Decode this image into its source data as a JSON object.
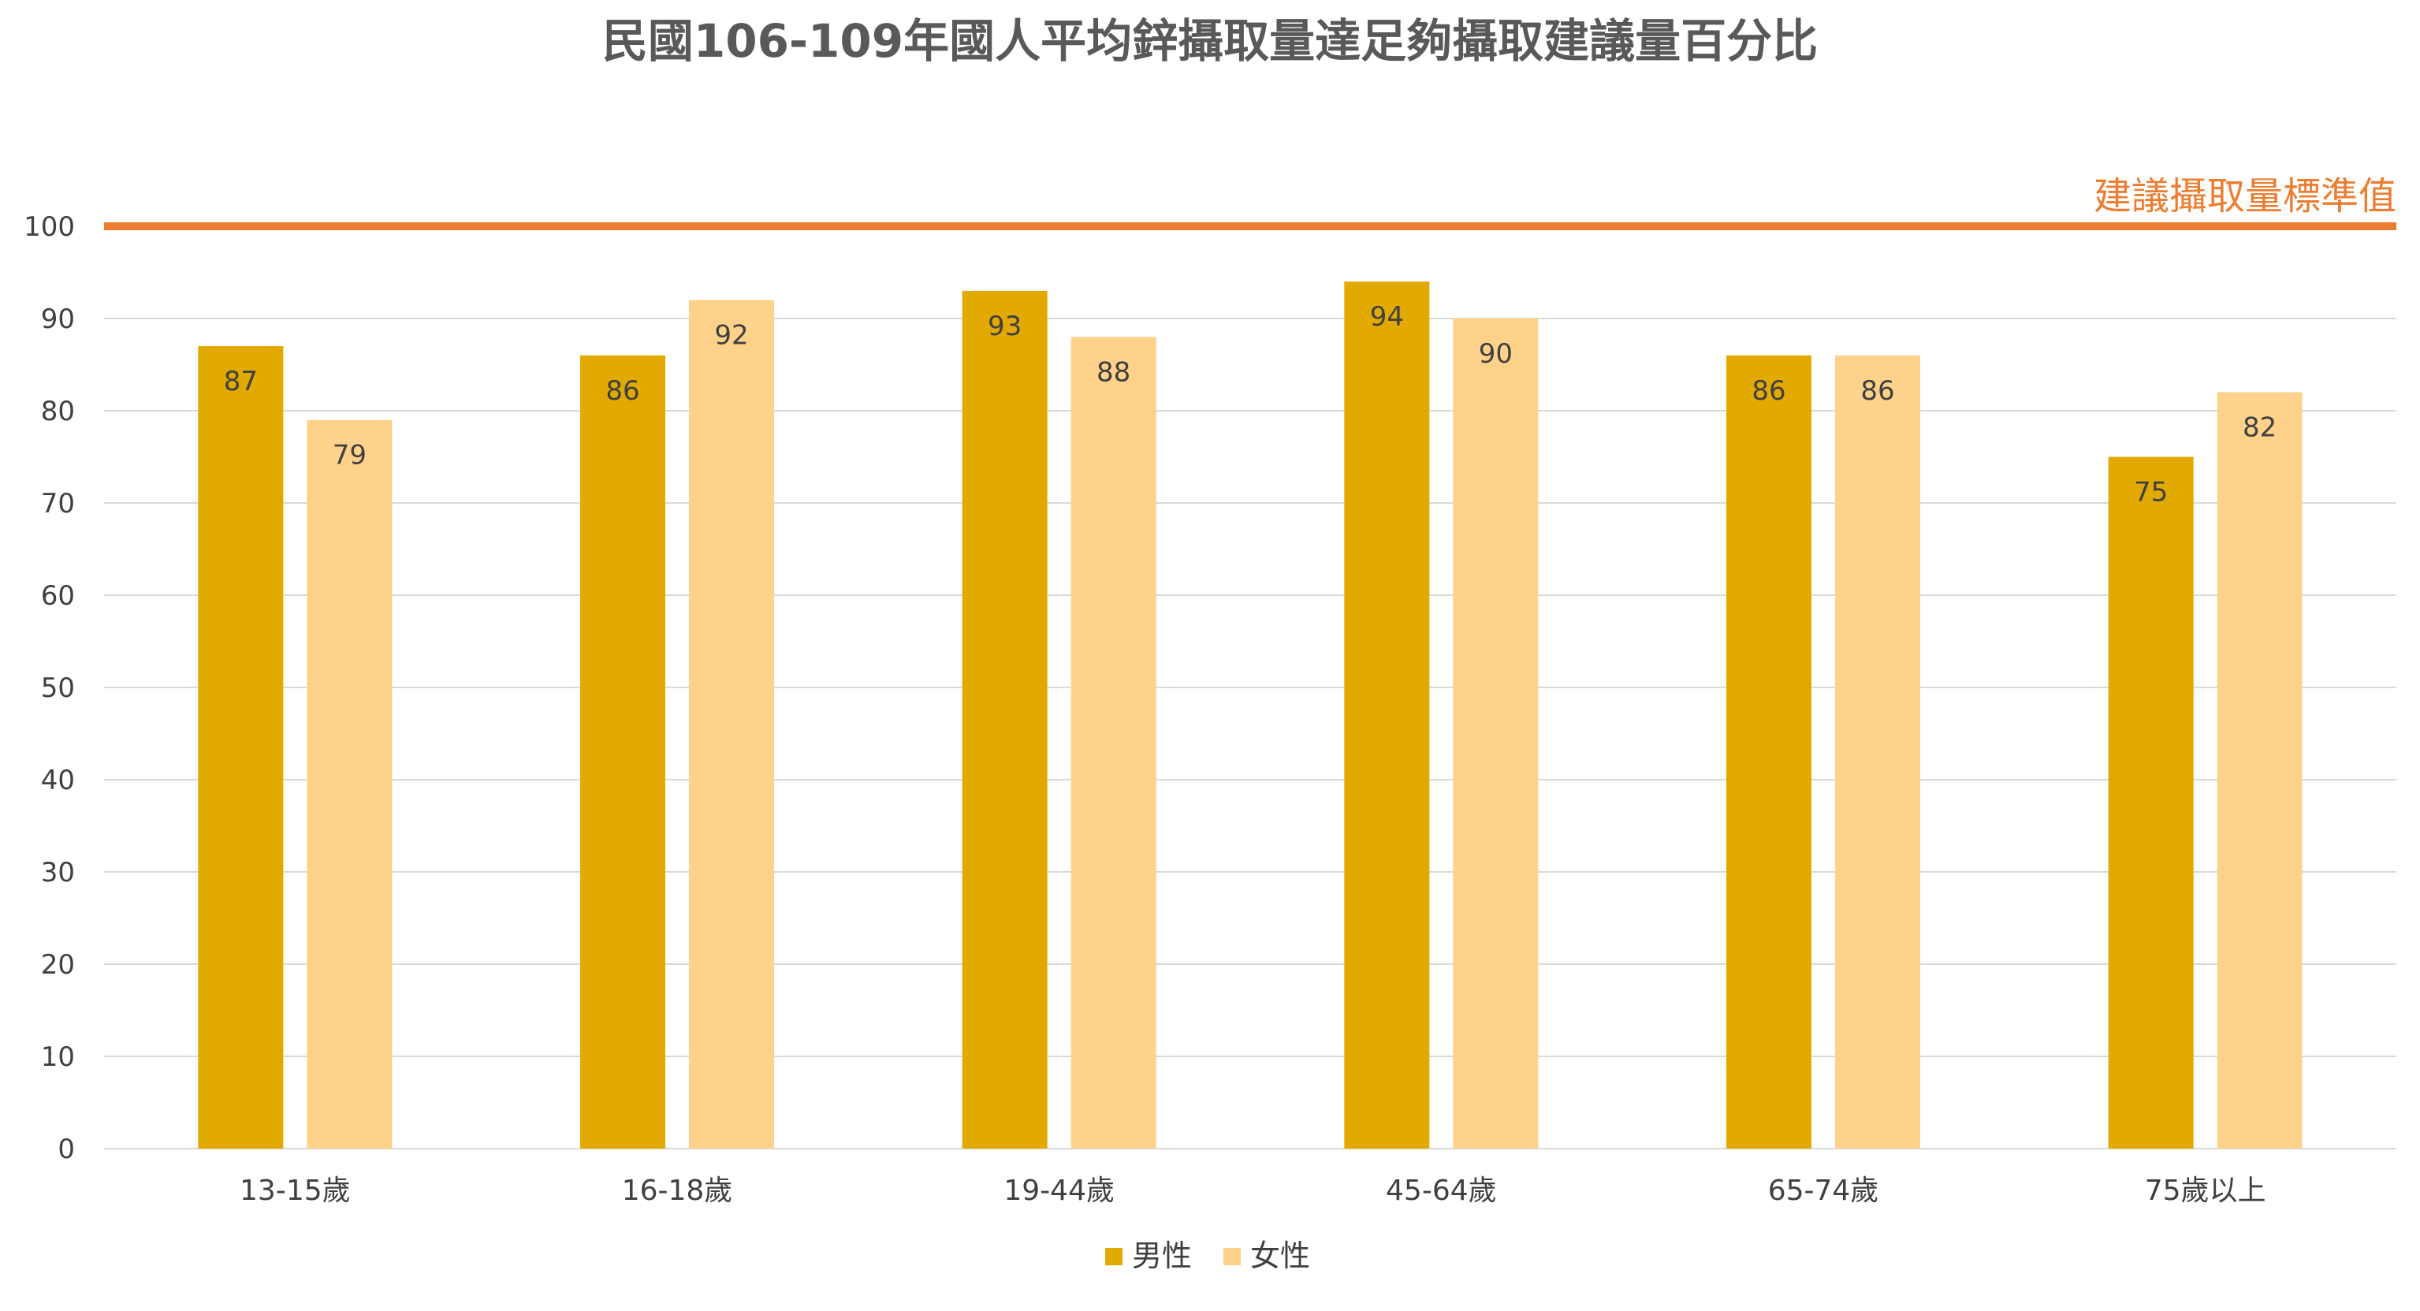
{
  "chart_data": {
    "type": "bar",
    "title": "民國106-109年國人平均鋅攝取量達足夠攝取建議量百分比",
    "xlabel": "",
    "ylabel": "",
    "categories": [
      "13-15歲",
      "16-18歲",
      "19-44歲",
      "45-64歲",
      "65-74歲",
      "75歲以上"
    ],
    "series": [
      {
        "name": "男性",
        "values": [
          87,
          86,
          93,
          94,
          86,
          75
        ],
        "color": "#E2AA00"
      },
      {
        "name": "女性",
        "values": [
          79,
          92,
          88,
          90,
          86,
          82
        ],
        "color": "#FED28A"
      }
    ],
    "ylim": [
      0,
      100
    ],
    "yticks": [
      0,
      10,
      20,
      30,
      40,
      50,
      60,
      70,
      80,
      90,
      100
    ],
    "grid": true,
    "legend_position": "bottom",
    "reference_line": {
      "value": 100,
      "label": "建議攝取量標準值",
      "color": "#ED7D31"
    },
    "colors": {
      "title": "#595959",
      "axis_text": "#404040",
      "gridline": "#D9D9D9"
    }
  }
}
